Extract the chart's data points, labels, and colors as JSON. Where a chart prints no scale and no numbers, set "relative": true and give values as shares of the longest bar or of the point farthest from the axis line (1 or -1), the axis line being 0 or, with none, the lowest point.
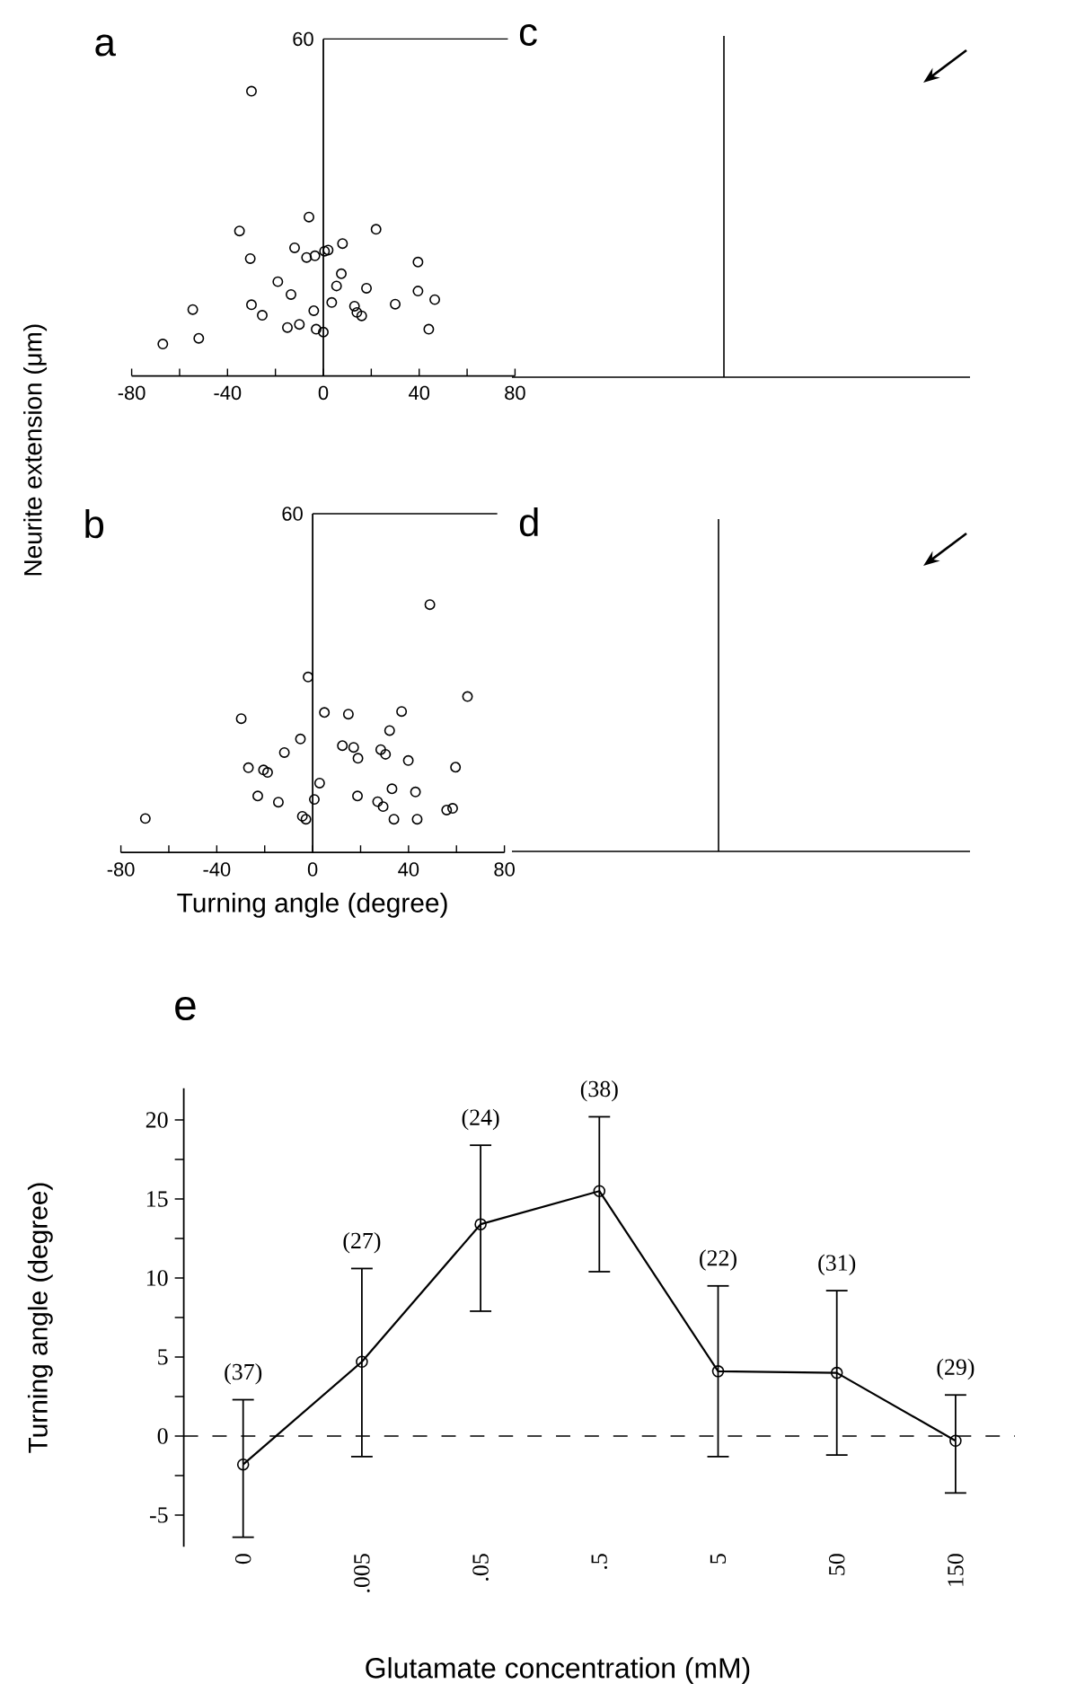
{
  "chart_data": [
    {
      "type": "scatter",
      "title": "a",
      "ylabel": "Neurite extension (μm)",
      "color": "#000000",
      "marker": "circle",
      "relative": true,
      "x": [
        -30,
        -67,
        -52,
        -54.5,
        -35,
        -30.5,
        -30,
        -25.5,
        -19,
        -13.5,
        -15,
        -10,
        -12,
        -6,
        -7,
        -3.5,
        0.5,
        2,
        8,
        -4,
        -3,
        0,
        7.5,
        5.5,
        3.5,
        22,
        18,
        13,
        14,
        16,
        30,
        39.5,
        39.5,
        46.5,
        44
      ],
      "values": [
        1,
        0.112,
        0.132,
        0.233,
        0.509,
        0.412,
        0.25,
        0.213,
        0.331,
        0.286,
        0.17,
        0.181,
        0.45,
        0.558,
        0.416,
        0.422,
        0.438,
        0.442,
        0.465,
        0.229,
        0.164,
        0.154,
        0.359,
        0.316,
        0.258,
        0.515,
        0.308,
        0.245,
        0.223,
        0.211,
        0.252,
        0.4,
        0.298,
        0.268,
        0.164
      ],
      "xlim": [
        -80,
        80
      ],
      "xticks": [
        -80,
        {
          "value": -60,
          "label": null
        },
        -40,
        {
          "value": -20,
          "label": null
        },
        0,
        {
          "value": 20,
          "label": null
        },
        40,
        {
          "value": 60,
          "label": null
        },
        80
      ],
      "annotations": [
        "60"
      ]
    },
    {
      "type": "other",
      "title": "c"
    },
    {
      "type": "scatter",
      "title": "b",
      "xlabel": "Turning angle (degree)",
      "color": "#000000",
      "marker": "circle",
      "relative": true,
      "x": [
        48.9,
        -1.9,
        64.6,
        -29.8,
        4.9,
        14.9,
        37.1,
        32.1,
        -5.1,
        -11.8,
        12.4,
        17.1,
        18.9,
        28.4,
        30.4,
        39.9,
        59.6,
        -26.8,
        -18.8,
        -20.5,
        2.9,
        0.7,
        -22.9,
        -14.3,
        18.7,
        33.1,
        42.9,
        27.1,
        29.4,
        -4.3,
        -2.8,
        33.9,
        43.6,
        55.9,
        58.4,
        -69.8
      ],
      "values": [
        1,
        0.708,
        0.629,
        0.54,
        0.565,
        0.558,
        0.569,
        0.492,
        0.458,
        0.403,
        0.431,
        0.424,
        0.38,
        0.415,
        0.396,
        0.371,
        0.344,
        0.342,
        0.323,
        0.333,
        0.28,
        0.214,
        0.228,
        0.203,
        0.228,
        0.257,
        0.244,
        0.205,
        0.185,
        0.146,
        0.134,
        0.134,
        0.134,
        0.171,
        0.178,
        0.137
      ],
      "xlim": [
        -80,
        80
      ],
      "xticks": [
        -80,
        {
          "value": -60,
          "label": null
        },
        -40,
        {
          "value": -20,
          "label": null
        },
        0,
        {
          "value": 20,
          "label": null
        },
        40,
        {
          "value": 60,
          "label": null
        },
        80
      ],
      "annotations": [
        "60"
      ]
    },
    {
      "type": "other",
      "title": "d"
    },
    {
      "type": "line",
      "title": "e",
      "xlabel": "Glutamate concentration (mM)",
      "ylabel": "Turning angle (degree)",
      "color": "#000000",
      "marker": "circle",
      "line_style": "solid",
      "categories": [
        "0",
        ".005",
        ".05",
        ".5",
        "5",
        "50",
        "150"
      ],
      "values": [
        -1.8,
        4.7,
        13.4,
        15.5,
        4.1,
        4.0,
        -0.3
      ],
      "errors": [
        [
          -6.4,
          2.3
        ],
        [
          -1.3,
          10.6
        ],
        [
          7.9,
          18.4
        ],
        [
          10.4,
          20.2
        ],
        [
          -1.3,
          9.5
        ],
        [
          -1.2,
          9.2
        ],
        [
          -3.6,
          2.6
        ]
      ],
      "ylim": [
        -7,
        22
      ],
      "yticks": [
        -5,
        {
          "value": -2.5,
          "label": null
        },
        0,
        {
          "value": 2.5,
          "label": null
        },
        5,
        {
          "value": 7.5,
          "label": null
        },
        10,
        {
          "value": 12.5,
          "label": null
        },
        15,
        {
          "value": 17.5,
          "label": null
        },
        20
      ],
      "ref_lines": [
        {
          "axis": "y",
          "value": 0,
          "line_style": "dashed"
        }
      ],
      "annotations": [
        "(37)",
        "(27)",
        "(24)",
        "(38)",
        "(22)",
        "(31)",
        "(29)"
      ]
    }
  ]
}
